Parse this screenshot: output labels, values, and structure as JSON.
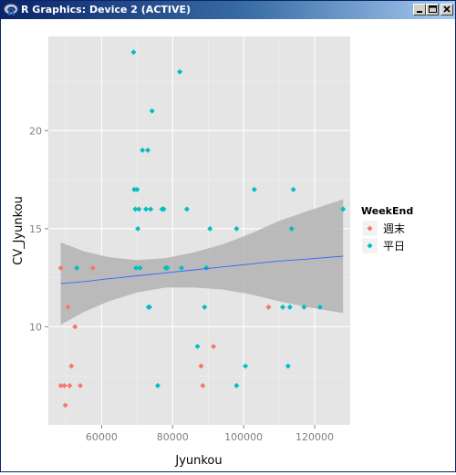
{
  "window": {
    "title": "R Graphics: Device 2 (ACTIVE)",
    "app_icon": "r-logo-icon",
    "controls": [
      "minimize-icon",
      "maximize-icon",
      "close-icon"
    ]
  },
  "chart_data": {
    "type": "scatter",
    "title": "",
    "xlabel": "Jyunkou",
    "ylabel": "CV_Jyunkou",
    "xlim": [
      45000,
      130000
    ],
    "ylim": [
      5.0,
      24.8
    ],
    "x_ticks": [
      60000,
      80000,
      100000,
      120000
    ],
    "x_tick_labels": [
      "60000",
      "80000",
      "100000",
      "120000"
    ],
    "y_ticks": [
      10,
      15,
      20
    ],
    "y_tick_labels": [
      "10",
      "15",
      "20"
    ],
    "grid": true,
    "panel_background": "#e5e5e5",
    "legend": {
      "title": "WeekEnd",
      "position": "right",
      "entries": [
        {
          "label": "週末",
          "color": "#f8766d"
        },
        {
          "label": "平日",
          "color": "#00bfc4"
        }
      ]
    },
    "series": [
      {
        "name": "週末",
        "color": "#f8766d",
        "points": [
          [
            48500,
            13
          ],
          [
            48500,
            7
          ],
          [
            49500,
            7
          ],
          [
            49800,
            6
          ],
          [
            50500,
            11
          ],
          [
            51000,
            7
          ],
          [
            51500,
            8
          ],
          [
            52500,
            10
          ],
          [
            54000,
            7
          ],
          [
            57500,
            13
          ],
          [
            88000,
            8
          ],
          [
            88500,
            7
          ],
          [
            91500,
            9
          ],
          [
            107000,
            11
          ]
        ]
      },
      {
        "name": "平日",
        "color": "#00bfc4",
        "points": [
          [
            53000,
            13
          ],
          [
            69000,
            24
          ],
          [
            69200,
            17
          ],
          [
            69500,
            16
          ],
          [
            69700,
            13
          ],
          [
            70000,
            17
          ],
          [
            70200,
            15
          ],
          [
            70500,
            16
          ],
          [
            70800,
            13
          ],
          [
            71500,
            19
          ],
          [
            72500,
            16
          ],
          [
            73000,
            19
          ],
          [
            73200,
            11
          ],
          [
            73500,
            11
          ],
          [
            73800,
            16
          ],
          [
            74200,
            21
          ],
          [
            75800,
            7
          ],
          [
            77000,
            16
          ],
          [
            77500,
            16
          ],
          [
            78000,
            13
          ],
          [
            78500,
            13
          ],
          [
            82000,
            23
          ],
          [
            82500,
            13
          ],
          [
            84000,
            16
          ],
          [
            87000,
            9
          ],
          [
            89000,
            11
          ],
          [
            89500,
            13
          ],
          [
            90500,
            15
          ],
          [
            98000,
            7
          ],
          [
            98000,
            15
          ],
          [
            100500,
            8
          ],
          [
            103000,
            17
          ],
          [
            111000,
            11
          ],
          [
            112500,
            8
          ],
          [
            113000,
            11
          ],
          [
            113500,
            15
          ],
          [
            114000,
            17
          ],
          [
            117000,
            11
          ],
          [
            121500,
            11
          ],
          [
            128000,
            16
          ]
        ]
      }
    ],
    "smooth": {
      "method": "lm",
      "color": "#3366ff",
      "fill": "#b3b3b3",
      "x": [
        48500,
        55000,
        62000,
        70000,
        78000,
        86000,
        94000,
        102000,
        110000,
        118000,
        128000
      ],
      "fit": [
        12.2,
        12.3,
        12.45,
        12.6,
        12.75,
        12.9,
        13.05,
        13.2,
        13.35,
        13.45,
        13.6
      ],
      "lower": [
        10.1,
        10.75,
        11.3,
        11.75,
        12.0,
        12.0,
        11.9,
        11.65,
        11.3,
        11.0,
        10.7
      ],
      "upper": [
        14.3,
        13.85,
        13.55,
        13.4,
        13.5,
        13.8,
        14.2,
        14.75,
        15.4,
        15.9,
        16.5
      ]
    }
  }
}
